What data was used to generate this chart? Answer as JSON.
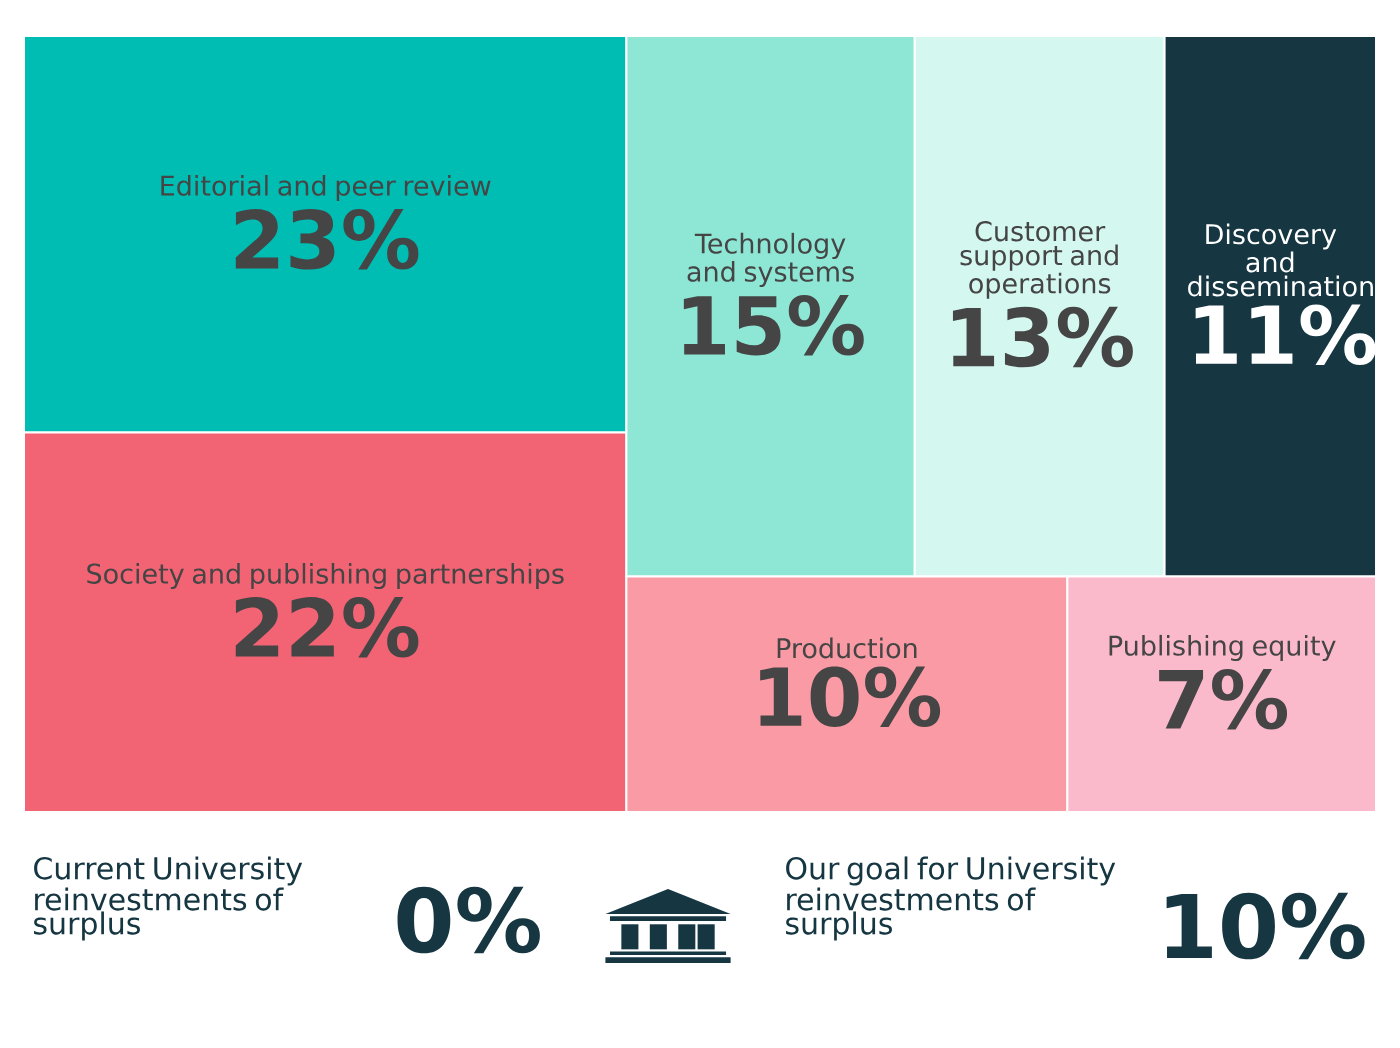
{
  "chart_data": {
    "type": "other",
    "categories": [
      "Editorial and peer review",
      "Society and publishing partnerships",
      "Technology and systems",
      "Customer support and operations",
      "Discovery and dissemination",
      "Production",
      "Publishing equity"
    ],
    "values": [
      23,
      22,
      15,
      13,
      11,
      10,
      7
    ],
    "value_labels": [
      "23%",
      "22%",
      "15%",
      "13%",
      "11%",
      "10%",
      "7%"
    ],
    "colors": [
      "#00bdb3",
      "#f26474",
      "#8ee6d5",
      "#d4f8f0",
      "#163642",
      "#f99aa4",
      "#fbb9cc"
    ],
    "annotations": [
      "Current University reinvestments of surplus",
      "0%",
      "Our goal for University reinvestments of surplus",
      "10%"
    ]
  }
}
